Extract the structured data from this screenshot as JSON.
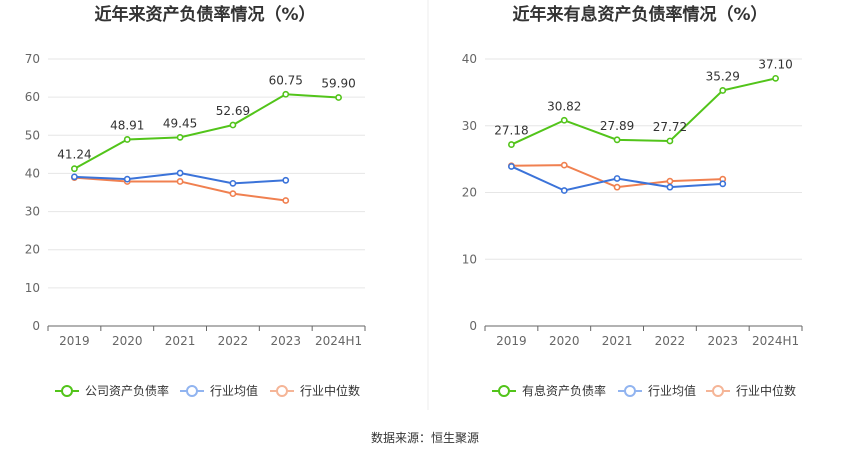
{
  "source": "数据来源：恒生聚源",
  "chart_data": [
    {
      "type": "line",
      "title": "近年来资产负债率情况（%）",
      "categories": [
        "2019",
        "2020",
        "2021",
        "2022",
        "2023",
        "2024H1"
      ],
      "ylim": [
        0,
        70
      ],
      "yticks": [
        "0",
        "10",
        "20",
        "30",
        "40",
        "50",
        "60",
        "70"
      ],
      "series": [
        {
          "name": "公司资产负债率",
          "color": "#52c41a",
          "values": [
            41.24,
            48.91,
            49.45,
            52.69,
            60.75,
            59.9
          ],
          "labels": [
            "41.24",
            "48.91",
            "49.45",
            "52.69",
            "60.75",
            "59.90"
          ]
        },
        {
          "name": "行业均值",
          "color": "#3b73d9",
          "values": [
            39.1,
            38.5,
            40.1,
            37.4,
            38.2,
            null
          ]
        },
        {
          "name": "行业中位数",
          "color": "#f08050",
          "values": [
            38.9,
            37.9,
            37.9,
            34.7,
            32.9,
            null
          ]
        }
      ]
    },
    {
      "type": "line",
      "title": "近年来有息资产负债率情况（%）",
      "categories": [
        "2019",
        "2020",
        "2021",
        "2022",
        "2023",
        "2024H1"
      ],
      "ylim": [
        0,
        40
      ],
      "yticks": [
        "0",
        "10",
        "20",
        "30",
        "40"
      ],
      "series": [
        {
          "name": "有息资产负债率",
          "color": "#52c41a",
          "values": [
            27.18,
            30.82,
            27.89,
            27.72,
            35.29,
            37.1
          ],
          "labels": [
            "27.18",
            "30.82",
            "27.89",
            "27.72",
            "35.29",
            "37.10"
          ]
        },
        {
          "name": "行业均值",
          "color": "#3b73d9",
          "values": [
            23.9,
            20.3,
            22.1,
            20.8,
            21.3,
            null
          ]
        },
        {
          "name": "行业中位数",
          "color": "#f08050",
          "values": [
            24.0,
            24.1,
            20.8,
            21.7,
            22.0,
            null
          ]
        }
      ]
    }
  ]
}
